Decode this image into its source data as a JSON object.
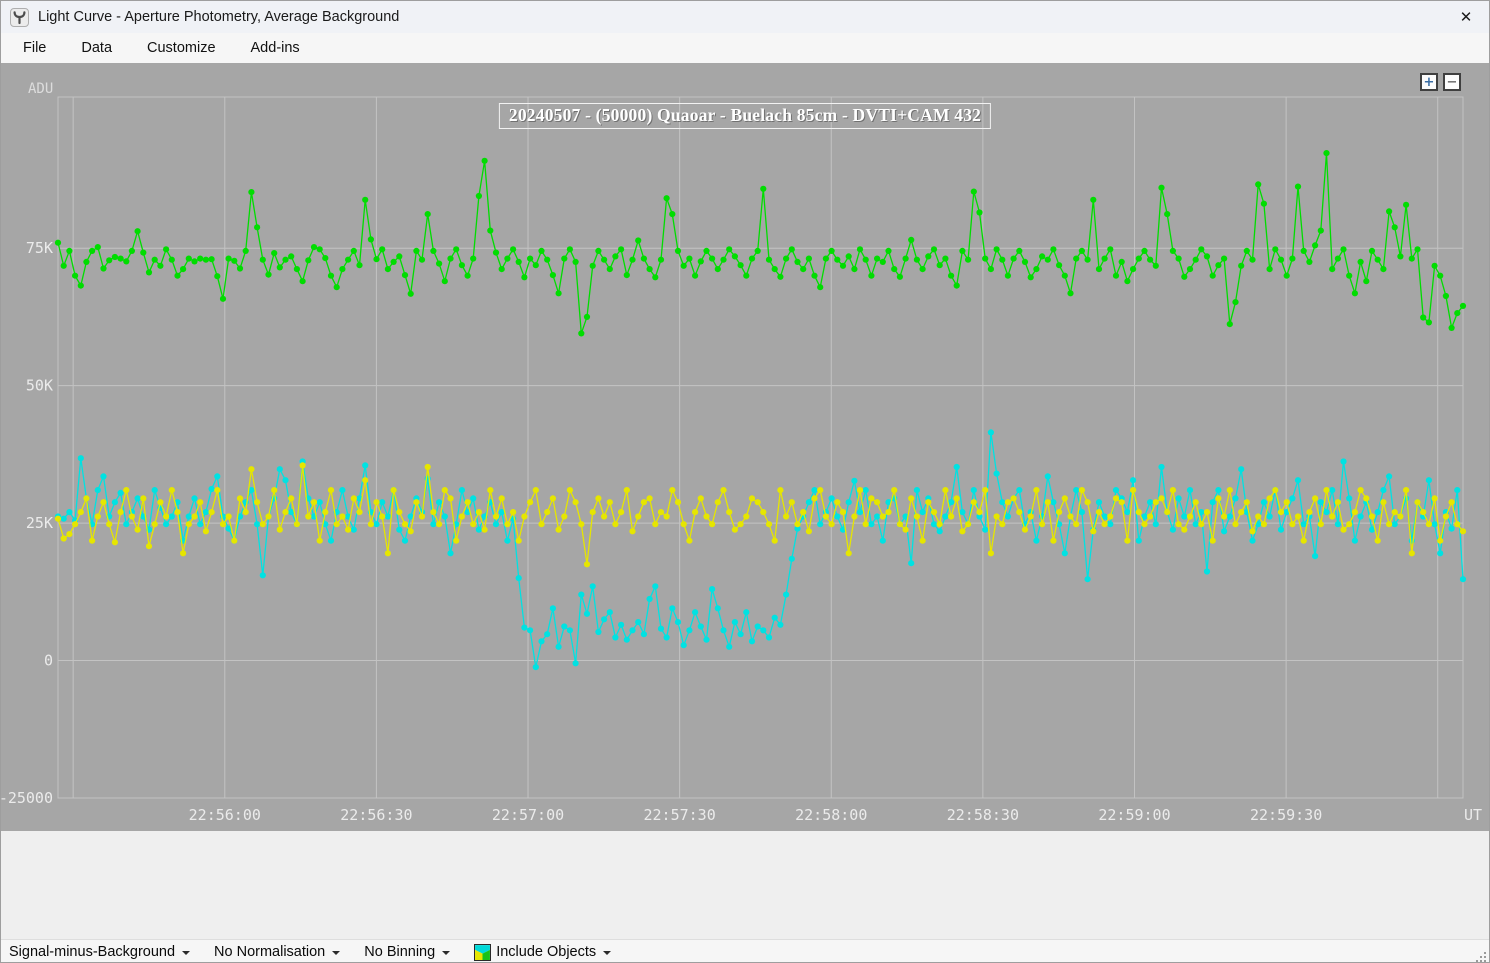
{
  "window": {
    "title": "Light Curve - Aperture Photometry, Average Background",
    "close_glyph": "✕"
  },
  "menu": {
    "items": [
      "File",
      "Data",
      "Customize",
      "Add-ins"
    ]
  },
  "chart": {
    "title": "20240507 - (50000) Quaoar - Buelach 85cm - DVTI+CAM 432",
    "zoom_in_label": "+",
    "zoom_out_label": "−",
    "background": "#a6a6a6",
    "grid_color": "#c3c3c3",
    "tick_text_color": "#ebebeb"
  },
  "chart_data": {
    "type": "line",
    "title": "20240507 - (50000) Quaoar - Buelach 85cm - DVTI+CAM 432",
    "xlabel": "UT",
    "ylabel": "ADU",
    "ylim": [
      -25000,
      102500
    ],
    "grid": true,
    "legend": "none",
    "x_start_seconds": 82527,
    "x_end_seconds": 82805,
    "x_ticks": [
      {
        "seconds": 82530,
        "label": ""
      },
      {
        "seconds": 82560,
        "label": "22:56:00"
      },
      {
        "seconds": 82590,
        "label": "22:56:30"
      },
      {
        "seconds": 82620,
        "label": "22:57:00"
      },
      {
        "seconds": 82650,
        "label": "22:57:30"
      },
      {
        "seconds": 82680,
        "label": "22:58:00"
      },
      {
        "seconds": 82710,
        "label": "22:58:30"
      },
      {
        "seconds": 82740,
        "label": "22:59:00"
      },
      {
        "seconds": 82770,
        "label": "22:59:30"
      },
      {
        "seconds": 82800,
        "label": ""
      }
    ],
    "y_ticks": [
      {
        "value": -25000,
        "label": "-25000"
      },
      {
        "value": 0,
        "label": "0"
      },
      {
        "value": 25000,
        "label": "25K"
      },
      {
        "value": 50000,
        "label": "50K"
      },
      {
        "value": 75000,
        "label": "75K"
      }
    ],
    "value_scale": 100,
    "series": [
      {
        "name": "series-green",
        "color": "#00dd00",
        "values": [
          760,
          718,
          745,
          700,
          682,
          725,
          745,
          752,
          713,
          728,
          734,
          731,
          726,
          745,
          781,
          742,
          706,
          729,
          718,
          748,
          729,
          700,
          712,
          731,
          726,
          731,
          729,
          730,
          699,
          658,
          731,
          727,
          713,
          745,
          852,
          788,
          729,
          702,
          741,
          715,
          729,
          735,
          712,
          690,
          728,
          752,
          748,
          732,
          700,
          679,
          712,
          729,
          745,
          719,
          838,
          766,
          730,
          748,
          712,
          725,
          735,
          701,
          667,
          745,
          729,
          812,
          745,
          722,
          690,
          731,
          748,
          719,
          700,
          731,
          845,
          909,
          782,
          742,
          712,
          731,
          748,
          725,
          697,
          731,
          719,
          745,
          729,
          701,
          668,
          731,
          748,
          725,
          595,
          625,
          718,
          745,
          729,
          712,
          735,
          748,
          701,
          729,
          764,
          731,
          712,
          697,
          729,
          841,
          812,
          745,
          718,
          731,
          700,
          726,
          745,
          731,
          712,
          729,
          748,
          735,
          719,
          700,
          731,
          745,
          858,
          729,
          712,
          698,
          731,
          748,
          725,
          712,
          731,
          700,
          679,
          731,
          745,
          729,
          718,
          735,
          712,
          748,
          729,
          700,
          731,
          725,
          745,
          712,
          698,
          731,
          765,
          729,
          712,
          735,
          748,
          719,
          731,
          700,
          682,
          745,
          729,
          853,
          815,
          731,
          712,
          748,
          729,
          700,
          731,
          745,
          725,
          697,
          712,
          735,
          729,
          748,
          719,
          700,
          668,
          731,
          745,
          729,
          838,
          712,
          731,
          748,
          700,
          725,
          690,
          712,
          731,
          745,
          729,
          718,
          860,
          812,
          745,
          731,
          698,
          712,
          729,
          748,
          735,
          700,
          719,
          731,
          612,
          652,
          718,
          745,
          729,
          866,
          831,
          712,
          748,
          729,
          700,
          731,
          862,
          745,
          725,
          755,
          782,
          923,
          712,
          731,
          748,
          700,
          668,
          725,
          690,
          745,
          729,
          712,
          817,
          788,
          735,
          829,
          731,
          748,
          624,
          615,
          718,
          700,
          663,
          605,
          632,
          645
        ]
      },
      {
        "name": "series-cyan",
        "color": "#00e2e2",
        "values": [
          262,
          258,
          270,
          255,
          368,
          295,
          248,
          310,
          335,
          262,
          288,
          305,
          248,
          270,
          295,
          262,
          238,
          310,
          278,
          248,
          262,
          288,
          218,
          262,
          295,
          248,
          270,
          312,
          335,
          262,
          240,
          218,
          262,
          288,
          310,
          248,
          155,
          262,
          295,
          348,
          328,
          270,
          248,
          362,
          295,
          262,
          288,
          248,
          218,
          270,
          310,
          262,
          238,
          295,
          355,
          270,
          248,
          288,
          262,
          310,
          238,
          218,
          262,
          295,
          270,
          331,
          248,
          288,
          262,
          195,
          248,
          310,
          270,
          295,
          238,
          262,
          288,
          248,
          270,
          218,
          258,
          150,
          60,
          55,
          -12,
          35,
          48,
          95,
          25,
          62,
          55,
          -5,
          120,
          85,
          135,
          52,
          75,
          88,
          42,
          65,
          38,
          55,
          70,
          48,
          112,
          135,
          58,
          42,
          95,
          70,
          28,
          55,
          88,
          62,
          38,
          130,
          95,
          55,
          25,
          70,
          48,
          88,
          35,
          62,
          55,
          42,
          78,
          65,
          120,
          185,
          240,
          262,
          288,
          310,
          248,
          270,
          295,
          262,
          238,
          288,
          327,
          270,
          310,
          248,
          262,
          218,
          288,
          295,
          248,
          262,
          177,
          310,
          270,
          295,
          248,
          235,
          262,
          288,
          352,
          270,
          248,
          310,
          262,
          238,
          415,
          340,
          288,
          262,
          295,
          310,
          248,
          270,
          218,
          262,
          335,
          288,
          248,
          195,
          262,
          310,
          270,
          148,
          238,
          288,
          262,
          248,
          310,
          295,
          270,
          328,
          218,
          262,
          288,
          248,
          352,
          270,
          238,
          295,
          262,
          310,
          248,
          270,
          162,
          288,
          310,
          235,
          262,
          295,
          348,
          270,
          218,
          248,
          288,
          262,
          310,
          238,
          270,
          295,
          328,
          248,
          262,
          190,
          288,
          270,
          310,
          248,
          362,
          295,
          218,
          262,
          288,
          238,
          270,
          310,
          335,
          248,
          262,
          295,
          218,
          288,
          262,
          328,
          248,
          195,
          270,
          240,
          310,
          148
        ]
      },
      {
        "name": "series-yellow",
        "color": "#e6e600",
        "values": [
          258,
          222,
          230,
          248,
          270,
          295,
          218,
          262,
          288,
          248,
          215,
          270,
          310,
          262,
          238,
          295,
          208,
          248,
          288,
          262,
          310,
          270,
          195,
          248,
          262,
          288,
          235,
          270,
          310,
          248,
          262,
          218,
          295,
          270,
          348,
          288,
          248,
          262,
          310,
          238,
          270,
          295,
          248,
          355,
          262,
          288,
          218,
          270,
          310,
          248,
          262,
          238,
          295,
          270,
          328,
          248,
          288,
          262,
          195,
          310,
          270,
          248,
          235,
          288,
          262,
          352,
          270,
          248,
          310,
          295,
          218,
          262,
          288,
          248,
          270,
          238,
          310,
          262,
          295,
          248,
          270,
          218,
          262,
          288,
          310,
          248,
          270,
          295,
          238,
          262,
          310,
          288,
          248,
          175,
          270,
          295,
          262,
          288,
          248,
          270,
          310,
          235,
          262,
          288,
          295,
          248,
          270,
          262,
          310,
          288,
          248,
          218,
          270,
          295,
          262,
          248,
          288,
          310,
          270,
          238,
          248,
          262,
          295,
          288,
          270,
          248,
          218,
          310,
          262,
          288,
          248,
          270,
          235,
          295,
          310,
          262,
          248,
          288,
          270,
          195,
          262,
          310,
          248,
          295,
          288,
          262,
          270,
          310,
          248,
          238,
          295,
          262,
          218,
          288,
          270,
          248,
          310,
          262,
          295,
          235,
          248,
          288,
          270,
          310,
          195,
          262,
          248,
          288,
          295,
          270,
          238,
          262,
          310,
          248,
          288,
          218,
          270,
          295,
          262,
          248,
          310,
          288,
          235,
          270,
          248,
          262,
          295,
          288,
          218,
          310,
          270,
          248,
          262,
          288,
          295,
          270,
          310,
          248,
          238,
          262,
          288,
          248,
          270,
          218,
          295,
          262,
          310,
          248,
          270,
          288,
          235,
          262,
          248,
          295,
          310,
          270,
          288,
          248,
          262,
          218,
          270,
          295,
          248,
          310,
          262,
          288,
          238,
          248,
          270,
          310,
          295,
          262,
          218,
          288,
          248,
          270,
          262,
          310,
          195,
          288,
          270,
          248,
          295,
          218,
          262,
          288,
          248,
          235
        ]
      }
    ]
  },
  "statusbar": {
    "items": [
      {
        "label": "Signal-minus-Background"
      },
      {
        "label": "No Normalisation"
      },
      {
        "label": "No Binning"
      },
      {
        "label": "Include Objects"
      }
    ]
  }
}
